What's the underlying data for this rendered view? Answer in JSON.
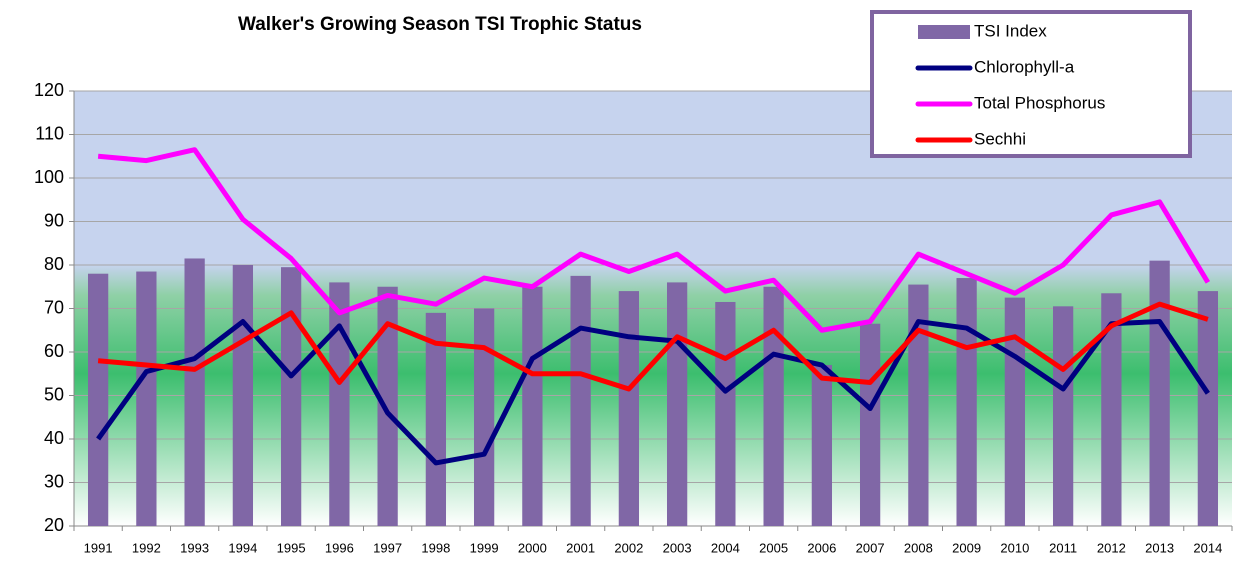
{
  "chart_data": {
    "type": "combo",
    "title": "Walker's Growing Season TSI Trophic Status",
    "categories": [
      "1991",
      "1992",
      "1993",
      "1994",
      "1995",
      "1996",
      "1997",
      "1998",
      "1999",
      "2000",
      "2001",
      "2002",
      "2003",
      "2004",
      "2005",
      "2006",
      "2007",
      "2008",
      "2009",
      "2010",
      "2011",
      "2012",
      "2013",
      "2014"
    ],
    "series": [
      {
        "name": "TSI Index",
        "type": "bar",
        "color": "#8067a6",
        "values": [
          78,
          78.5,
          81.5,
          80,
          79.5,
          76,
          75,
          69,
          70,
          75,
          77.5,
          74,
          76,
          71.5,
          75,
          57,
          66.5,
          75.5,
          77,
          72.5,
          70.5,
          73.5,
          81,
          74
        ]
      },
      {
        "name": "Chlorophyll-a",
        "type": "line",
        "color": "#000080",
        "values": [
          40,
          55.5,
          58.5,
          67,
          54.5,
          66,
          46,
          34.5,
          36.5,
          58.5,
          65.5,
          63.5,
          62.5,
          51,
          59.5,
          57,
          47,
          67,
          65.5,
          59,
          51.5,
          66.5,
          67,
          50.5
        ]
      },
      {
        "name": "Total Phosphorus",
        "type": "line",
        "color": "#ff00ff",
        "values": [
          105,
          104,
          106.5,
          90.5,
          81.5,
          69,
          73,
          71,
          77,
          75,
          82.5,
          78.5,
          82.5,
          74,
          76.5,
          65,
          67,
          82.5,
          78,
          73.5,
          80,
          91.5,
          94.5,
          76
        ]
      },
      {
        "name": "Sechhi",
        "type": "line",
        "color": "#ff0000",
        "values": [
          58,
          57,
          56,
          62.5,
          69,
          53,
          66.5,
          62,
          61,
          55,
          55,
          51.5,
          63.5,
          58.5,
          65,
          54,
          53,
          65,
          61,
          63.5,
          56,
          66,
          71,
          67.5
        ]
      }
    ],
    "ylim": [
      20,
      120
    ],
    "yticks": [
      20,
      30,
      40,
      50,
      60,
      70,
      80,
      90,
      100,
      110,
      120
    ],
    "grid": true,
    "legend": "upper right"
  }
}
